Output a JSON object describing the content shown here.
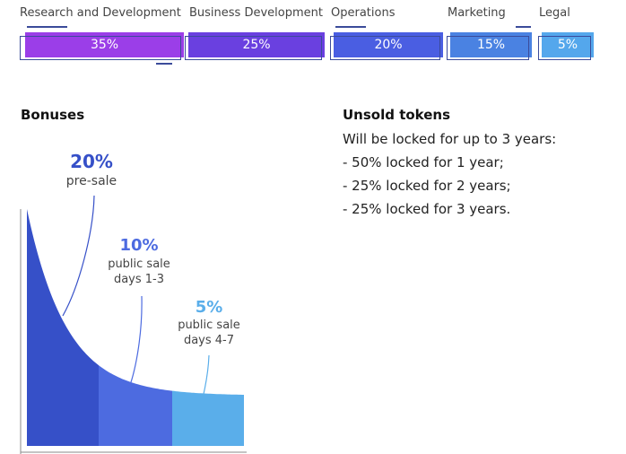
{
  "allocation": {
    "items": [
      {
        "label": "Research and Development",
        "percent": "35%",
        "color": "#9b3ee8"
      },
      {
        "label": "Business Development",
        "percent": "25%",
        "color": "#6a40e0"
      },
      {
        "label": "Operations",
        "percent": "20%",
        "color": "#4a5ee2"
      },
      {
        "label": "Marketing",
        "percent": "15%",
        "color": "#4a82e2"
      },
      {
        "label": "Legal",
        "percent": "5%",
        "color": "#54a7ec"
      }
    ]
  },
  "bonuses": {
    "title": "Bonuses",
    "tiers": [
      {
        "percent": "20%",
        "line1": "pre-sale",
        "line2": "",
        "color": "#3650c8"
      },
      {
        "percent": "10%",
        "line1": "public sale",
        "line2": "days 1-3",
        "color": "#4d6be0"
      },
      {
        "percent": "5%",
        "line1": "public sale",
        "line2": "days 4-7",
        "color": "#5aaeea"
      }
    ]
  },
  "unsold": {
    "title": "Unsold tokens",
    "intro": "Will be locked for up to 3 years:",
    "items": [
      "- 50% locked for 1 year;",
      "- 25% locked for 2 years;",
      "- 25% locked for 3 years."
    ]
  }
}
